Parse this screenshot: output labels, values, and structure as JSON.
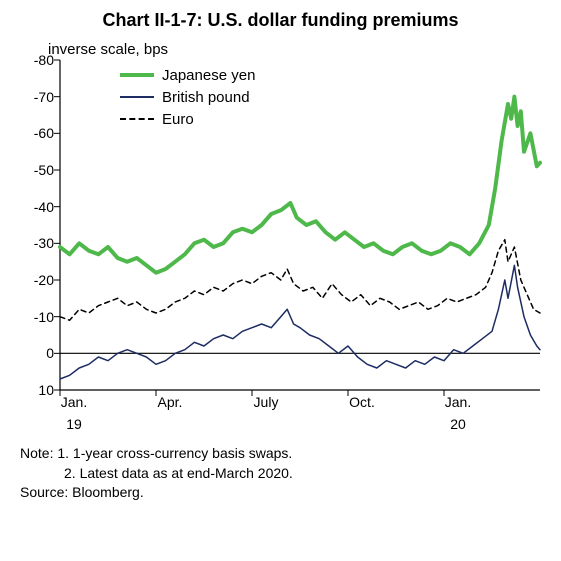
{
  "chart": {
    "type": "line",
    "title": "Chart II-1-7: U.S. dollar funding premiums",
    "subtitle": "inverse scale, bps",
    "background_color": "#ffffff",
    "axis_color": "#000000",
    "tick_font_size": 14,
    "title_font_size": 18,
    "y_axis": {
      "min": 10,
      "max": -80,
      "ticks": [
        -80,
        -70,
        -60,
        -50,
        -40,
        -30,
        -20,
        -10,
        0,
        10
      ],
      "inverted": true
    },
    "x_axis": {
      "min": 0,
      "max": 15,
      "tick_positions": [
        0,
        3,
        6,
        9,
        12
      ],
      "tick_labels": [
        "Jan.",
        "Apr.",
        "July",
        "Oct.",
        "Jan."
      ],
      "year_positions": [
        0,
        12
      ],
      "year_labels": [
        "19",
        "20"
      ]
    },
    "series": [
      {
        "name": "Japanese yen",
        "color": "#4fb84b",
        "line_width": 4,
        "dash": "none",
        "data": [
          [
            0,
            -29
          ],
          [
            0.3,
            -27
          ],
          [
            0.6,
            -30
          ],
          [
            0.9,
            -28
          ],
          [
            1.2,
            -27
          ],
          [
            1.5,
            -29
          ],
          [
            1.8,
            -26
          ],
          [
            2.1,
            -25
          ],
          [
            2.4,
            -26
          ],
          [
            2.7,
            -24
          ],
          [
            3.0,
            -22
          ],
          [
            3.3,
            -23
          ],
          [
            3.6,
            -25
          ],
          [
            3.9,
            -27
          ],
          [
            4.2,
            -30
          ],
          [
            4.5,
            -31
          ],
          [
            4.8,
            -29
          ],
          [
            5.1,
            -30
          ],
          [
            5.4,
            -33
          ],
          [
            5.7,
            -34
          ],
          [
            6.0,
            -33
          ],
          [
            6.3,
            -35
          ],
          [
            6.6,
            -38
          ],
          [
            6.9,
            -39
          ],
          [
            7.2,
            -41
          ],
          [
            7.4,
            -37
          ],
          [
            7.7,
            -35
          ],
          [
            8.0,
            -36
          ],
          [
            8.3,
            -33
          ],
          [
            8.6,
            -31
          ],
          [
            8.9,
            -33
          ],
          [
            9.2,
            -31
          ],
          [
            9.5,
            -29
          ],
          [
            9.8,
            -30
          ],
          [
            10.1,
            -28
          ],
          [
            10.4,
            -27
          ],
          [
            10.7,
            -29
          ],
          [
            11.0,
            -30
          ],
          [
            11.3,
            -28
          ],
          [
            11.6,
            -27
          ],
          [
            11.9,
            -28
          ],
          [
            12.2,
            -30
          ],
          [
            12.5,
            -29
          ],
          [
            12.8,
            -27
          ],
          [
            13.1,
            -30
          ],
          [
            13.4,
            -35
          ],
          [
            13.6,
            -45
          ],
          [
            13.8,
            -58
          ],
          [
            14.0,
            -68
          ],
          [
            14.1,
            -64
          ],
          [
            14.2,
            -70
          ],
          [
            14.3,
            -62
          ],
          [
            14.4,
            -66
          ],
          [
            14.5,
            -55
          ],
          [
            14.7,
            -60
          ],
          [
            14.9,
            -51
          ],
          [
            15,
            -52
          ]
        ]
      },
      {
        "name": "British pound",
        "color": "#1d2c63",
        "line_width": 1.5,
        "dash": "none",
        "data": [
          [
            0,
            7
          ],
          [
            0.3,
            6
          ],
          [
            0.6,
            4
          ],
          [
            0.9,
            3
          ],
          [
            1.2,
            1
          ],
          [
            1.5,
            2
          ],
          [
            1.8,
            0
          ],
          [
            2.1,
            -1
          ],
          [
            2.4,
            0
          ],
          [
            2.7,
            1
          ],
          [
            3.0,
            3
          ],
          [
            3.3,
            2
          ],
          [
            3.6,
            0
          ],
          [
            3.9,
            -1
          ],
          [
            4.2,
            -3
          ],
          [
            4.5,
            -2
          ],
          [
            4.8,
            -4
          ],
          [
            5.1,
            -5
          ],
          [
            5.4,
            -4
          ],
          [
            5.7,
            -6
          ],
          [
            6.0,
            -7
          ],
          [
            6.3,
            -8
          ],
          [
            6.6,
            -7
          ],
          [
            6.9,
            -10
          ],
          [
            7.1,
            -12
          ],
          [
            7.3,
            -8
          ],
          [
            7.5,
            -7
          ],
          [
            7.8,
            -5
          ],
          [
            8.1,
            -4
          ],
          [
            8.4,
            -2
          ],
          [
            8.7,
            0
          ],
          [
            9.0,
            -2
          ],
          [
            9.3,
            1
          ],
          [
            9.6,
            3
          ],
          [
            9.9,
            4
          ],
          [
            10.2,
            2
          ],
          [
            10.5,
            3
          ],
          [
            10.8,
            4
          ],
          [
            11.1,
            2
          ],
          [
            11.4,
            3
          ],
          [
            11.7,
            1
          ],
          [
            12.0,
            2
          ],
          [
            12.3,
            -1
          ],
          [
            12.6,
            0
          ],
          [
            12.9,
            -2
          ],
          [
            13.2,
            -4
          ],
          [
            13.5,
            -6
          ],
          [
            13.7,
            -12
          ],
          [
            13.9,
            -20
          ],
          [
            14.0,
            -15
          ],
          [
            14.2,
            -24
          ],
          [
            14.3,
            -18
          ],
          [
            14.5,
            -10
          ],
          [
            14.7,
            -5
          ],
          [
            14.9,
            -2
          ],
          [
            15,
            -1
          ]
        ]
      },
      {
        "name": "Euro",
        "color": "#000000",
        "line_width": 1.5,
        "dash": "5,4",
        "data": [
          [
            0,
            -10
          ],
          [
            0.3,
            -9
          ],
          [
            0.6,
            -12
          ],
          [
            0.9,
            -11
          ],
          [
            1.2,
            -13
          ],
          [
            1.5,
            -14
          ],
          [
            1.8,
            -15
          ],
          [
            2.1,
            -13
          ],
          [
            2.4,
            -14
          ],
          [
            2.7,
            -12
          ],
          [
            3.0,
            -11
          ],
          [
            3.3,
            -12
          ],
          [
            3.6,
            -14
          ],
          [
            3.9,
            -15
          ],
          [
            4.2,
            -17
          ],
          [
            4.5,
            -16
          ],
          [
            4.8,
            -18
          ],
          [
            5.1,
            -17
          ],
          [
            5.4,
            -19
          ],
          [
            5.7,
            -20
          ],
          [
            6.0,
            -19
          ],
          [
            6.3,
            -21
          ],
          [
            6.6,
            -22
          ],
          [
            6.9,
            -20
          ],
          [
            7.1,
            -23
          ],
          [
            7.3,
            -19
          ],
          [
            7.6,
            -17
          ],
          [
            7.9,
            -18
          ],
          [
            8.2,
            -15
          ],
          [
            8.5,
            -19
          ],
          [
            8.8,
            -16
          ],
          [
            9.1,
            -14
          ],
          [
            9.4,
            -16
          ],
          [
            9.7,
            -13
          ],
          [
            10.0,
            -15
          ],
          [
            10.3,
            -14
          ],
          [
            10.6,
            -12
          ],
          [
            10.9,
            -13
          ],
          [
            11.2,
            -14
          ],
          [
            11.5,
            -12
          ],
          [
            11.8,
            -13
          ],
          [
            12.1,
            -15
          ],
          [
            12.4,
            -14
          ],
          [
            12.7,
            -15
          ],
          [
            13.0,
            -16
          ],
          [
            13.3,
            -18
          ],
          [
            13.5,
            -22
          ],
          [
            13.7,
            -28
          ],
          [
            13.9,
            -31
          ],
          [
            14.0,
            -25
          ],
          [
            14.2,
            -29
          ],
          [
            14.4,
            -20
          ],
          [
            14.6,
            -16
          ],
          [
            14.8,
            -12
          ],
          [
            15,
            -11
          ]
        ]
      }
    ],
    "legend": {
      "position": "top-left",
      "font_size": 15
    }
  },
  "notes": {
    "line1": "Note: 1. 1-year cross-currency basis swaps.",
    "line2": "2. Latest data as at end-March 2020.",
    "source": "Source: Bloomberg."
  }
}
